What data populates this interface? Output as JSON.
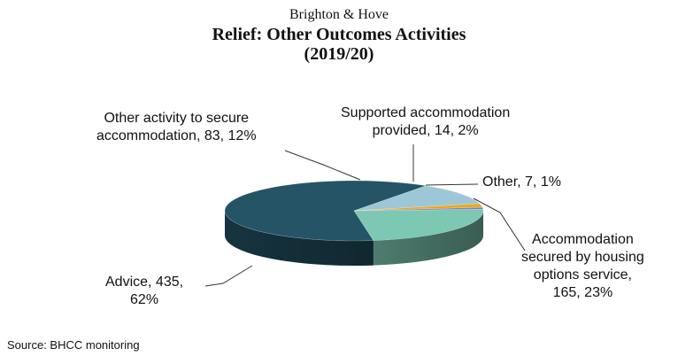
{
  "colors": {
    "accommodation_secured": "#7cc8b2",
    "advice": "#245466",
    "other_activity": "#9dc7d6",
    "supported": "#e9a91c",
    "other": "#7b7fbd"
  },
  "chart_data": {
    "type": "pie",
    "style": "3d",
    "subtitle": "Brighton & Hove",
    "title": "Relief: Other Outcomes Activities",
    "period": "(2019/20)",
    "slices": [
      {
        "name": "Accommodation secured by housing options service",
        "value": 165,
        "percent": 23,
        "color": "#7cc8b2"
      },
      {
        "name": "Advice",
        "value": 435,
        "percent": 62,
        "color": "#245466"
      },
      {
        "name": "Other activity to secure accommodation",
        "value": 83,
        "percent": 12,
        "color": "#9dc7d6"
      },
      {
        "name": "Supported accommodation provided",
        "value": 14,
        "percent": 2,
        "color": "#e9a91c"
      },
      {
        "name": "Other",
        "value": 7,
        "percent": 1,
        "color": "#7b7fbd"
      }
    ],
    "labels": {
      "other_activity_l1": "Other activity to secure",
      "other_activity_l2": "accommodation, 83, 12%",
      "supported_l1": "Supported accommodation",
      "supported_l2": "provided, 14, 2%",
      "other": "Other, 7, 1%",
      "accom_l1": "Accommodation",
      "accom_l2": "secured by housing",
      "accom_l3": "options service,",
      "accom_l4": "165, 23%",
      "advice_l1": "Advice, 435,",
      "advice_l2": "62%"
    },
    "legend": "none"
  },
  "source": "Source: BHCC monitoring"
}
